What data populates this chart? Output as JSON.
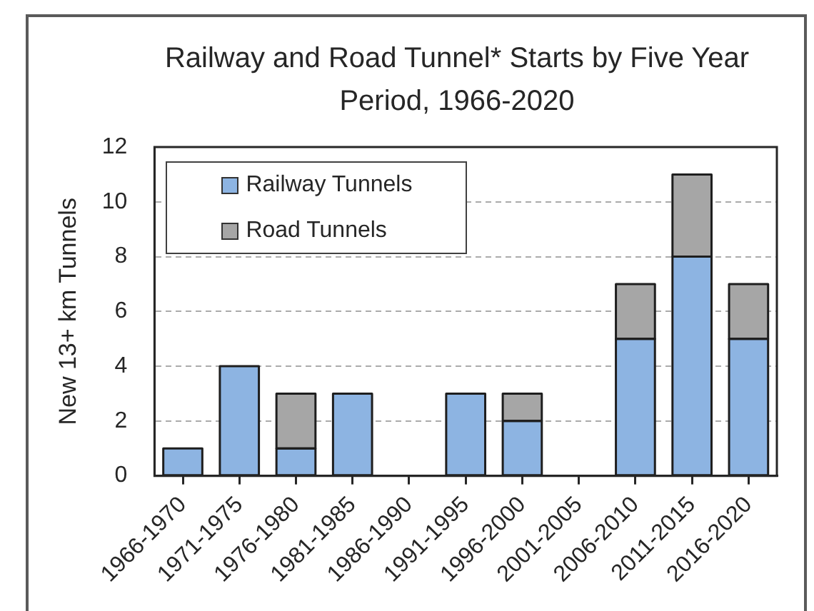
{
  "chart_data": {
    "type": "bar",
    "title": "Railway and Road Tunnel* Starts by Five Year Period, 1966-2020",
    "ylabel": "New 13+ km Tunnels",
    "categories": [
      "1966-1970",
      "1971-1975",
      "1976-1980",
      "1981-1985",
      "1986-1990",
      "1991-1995",
      "1996-2000",
      "2001-2005",
      "2006-2010",
      "2011-2015",
      "2016-2020"
    ],
    "series": [
      {
        "name": "Railway Tunnels",
        "color": "#8db4e2",
        "values": [
          1,
          4,
          1,
          3,
          0,
          3,
          2,
          0,
          5,
          8,
          5
        ]
      },
      {
        "name": "Road Tunnels",
        "color": "#a6a6a6",
        "values": [
          0,
          0,
          2,
          0,
          0,
          0,
          1,
          0,
          2,
          3,
          2
        ]
      }
    ],
    "stacked": true,
    "ylim": [
      0,
      12
    ],
    "yticks": [
      0,
      2,
      4,
      6,
      8,
      10,
      12
    ],
    "grid": "y",
    "legend": "top left"
  }
}
